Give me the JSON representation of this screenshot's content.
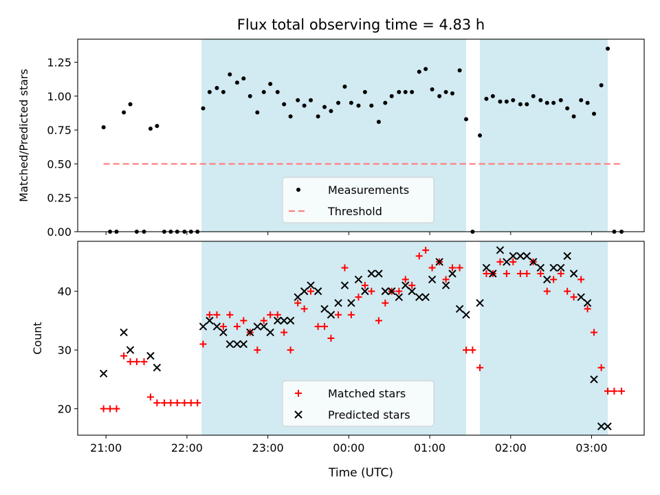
{
  "figure": {
    "title": "Flux total observing time = 4.83 h",
    "xlabel": "Time (UTC)",
    "x_ticks": [
      "21:00",
      "22:00",
      "23:00",
      "00:00",
      "01:00",
      "02:00",
      "03:00"
    ],
    "x_tick_hours": [
      21,
      22,
      23,
      24,
      25,
      26,
      27
    ]
  },
  "chart_data": [
    {
      "type": "scatter",
      "panel": "top",
      "title": "Flux total observing time = 4.83 h",
      "ylabel": "Matched/Predicted stars",
      "xlabel": "Time (UTC)",
      "x_unit": "hours since 00:00 of first day (24 = 00:00 next day)",
      "xlim": [
        20.65,
        27.65
      ],
      "ylim": [
        0,
        1.42
      ],
      "yticks": [
        "0.00",
        "0.25",
        "0.50",
        "0.75",
        "1.00",
        "1.25"
      ],
      "ytick_values": [
        0,
        0.25,
        0.5,
        0.75,
        1.0,
        1.25
      ],
      "shaded_intervals": [
        [
          22.18,
          25.45
        ],
        [
          25.62,
          27.2
        ]
      ],
      "shade_color": "#add8e6",
      "legend": {
        "position": "lower center",
        "entries": [
          "Measurements",
          "Threshold"
        ]
      },
      "series": [
        {
          "name": "Measurements",
          "kind": "points",
          "color": "#000000",
          "x": [
            20.97,
            21.05,
            21.13,
            21.22,
            21.3,
            21.38,
            21.47,
            21.55,
            21.63,
            21.72,
            21.8,
            21.88,
            21.97,
            22.05,
            22.13,
            22.2,
            22.28,
            22.37,
            22.45,
            22.53,
            22.62,
            22.7,
            22.78,
            22.87,
            22.95,
            23.03,
            23.12,
            23.2,
            23.28,
            23.37,
            23.45,
            23.53,
            23.62,
            23.7,
            23.78,
            23.87,
            23.95,
            24.03,
            24.12,
            24.2,
            24.28,
            24.37,
            24.45,
            24.53,
            24.62,
            24.7,
            24.78,
            24.87,
            24.95,
            25.03,
            25.12,
            25.2,
            25.28,
            25.37,
            25.45,
            25.53,
            25.62,
            25.7,
            25.78,
            25.87,
            25.95,
            26.03,
            26.12,
            26.2,
            26.28,
            26.37,
            26.45,
            26.53,
            26.62,
            26.7,
            26.78,
            26.87,
            26.95,
            27.03,
            27.12,
            27.2,
            27.28,
            27.37
          ],
          "y": [
            0.77,
            0.0,
            0.0,
            0.88,
            0.94,
            0.0,
            0.0,
            0.76,
            0.78,
            0.0,
            0.0,
            0.0,
            0.0,
            0.0,
            0.0,
            0.91,
            1.03,
            1.06,
            1.03,
            1.16,
            1.1,
            1.13,
            1.0,
            0.88,
            1.03,
            1.09,
            1.03,
            0.94,
            0.85,
            0.97,
            0.93,
            0.97,
            0.85,
            0.92,
            0.89,
            0.95,
            1.07,
            0.95,
            0.93,
            1.03,
            0.93,
            0.81,
            0.95,
            1.0,
            1.03,
            1.03,
            1.03,
            1.18,
            1.2,
            1.05,
            1.0,
            1.03,
            1.02,
            1.19,
            0.83,
            0.0,
            0.71,
            0.98,
            1.0,
            0.96,
            0.96,
            0.97,
            0.94,
            0.94,
            1.0,
            0.97,
            0.95,
            0.95,
            0.97,
            0.91,
            0.85,
            0.97,
            0.95,
            0.87,
            1.08,
            1.35,
            0.0,
            0.0
          ]
        },
        {
          "name": "Threshold",
          "kind": "dashed-line",
          "color": "#ff8080",
          "x": [
            20.97,
            27.37
          ],
          "y": [
            0.5,
            0.5
          ]
        }
      ]
    },
    {
      "type": "scatter",
      "panel": "bottom",
      "ylabel": "Count",
      "xlabel": "Time (UTC)",
      "x_unit": "hours since 00:00 of first day (24 = 00:00 next day)",
      "xlim": [
        20.65,
        27.65
      ],
      "ylim": [
        15.5,
        48.5
      ],
      "yticks": [
        "20",
        "30",
        "40"
      ],
      "ytick_values": [
        20,
        30,
        40
      ],
      "shaded_intervals": [
        [
          22.18,
          25.45
        ],
        [
          25.62,
          27.2
        ]
      ],
      "shade_color": "#add8e6",
      "legend": {
        "position": "lower center",
        "entries": [
          "Matched stars",
          "Predicted stars"
        ]
      },
      "series": [
        {
          "name": "Matched stars",
          "kind": "plus",
          "color": "#ff0000",
          "x": [
            20.97,
            21.05,
            21.13,
            21.22,
            21.3,
            21.38,
            21.47,
            21.55,
            21.63,
            21.72,
            21.8,
            21.88,
            21.97,
            22.05,
            22.13,
            22.2,
            22.28,
            22.37,
            22.45,
            22.53,
            22.62,
            22.7,
            22.78,
            22.87,
            22.95,
            23.03,
            23.12,
            23.2,
            23.28,
            23.37,
            23.45,
            23.53,
            23.62,
            23.7,
            23.78,
            23.87,
            23.95,
            24.03,
            24.12,
            24.2,
            24.28,
            24.37,
            24.45,
            24.53,
            24.62,
            24.7,
            24.78,
            24.87,
            24.95,
            25.03,
            25.12,
            25.2,
            25.28,
            25.37,
            25.45,
            25.53,
            25.62,
            25.7,
            25.78,
            25.87,
            25.95,
            26.03,
            26.12,
            26.2,
            26.28,
            26.37,
            26.45,
            26.53,
            26.62,
            26.7,
            26.78,
            26.87,
            26.95,
            27.03,
            27.12,
            27.2,
            27.28,
            27.37
          ],
          "y": [
            20,
            20,
            20,
            29,
            28,
            28,
            28,
            22,
            21,
            21,
            21,
            21,
            21,
            21,
            21,
            31,
            36,
            36,
            34,
            36,
            34,
            35,
            33,
            30,
            35,
            36,
            36,
            33,
            30,
            38,
            37,
            40,
            34,
            34,
            32,
            36,
            44,
            36,
            39,
            41,
            40,
            35,
            38,
            40,
            40,
            42,
            41,
            46,
            47,
            44,
            45,
            42,
            44,
            44,
            30,
            30,
            27,
            43,
            43,
            45,
            43,
            45,
            43,
            43,
            45,
            43,
            40,
            42,
            43,
            40,
            39,
            42,
            37,
            33,
            27,
            23,
            23,
            23
          ]
        },
        {
          "name": "Predicted stars",
          "kind": "x",
          "color": "#000000",
          "x": [
            20.97,
            21.22,
            21.3,
            21.55,
            21.63,
            22.2,
            22.28,
            22.37,
            22.45,
            22.53,
            22.62,
            22.7,
            22.78,
            22.87,
            22.95,
            23.03,
            23.12,
            23.2,
            23.28,
            23.37,
            23.45,
            23.53,
            23.62,
            23.7,
            23.78,
            23.87,
            23.95,
            24.03,
            24.12,
            24.2,
            24.28,
            24.37,
            24.45,
            24.53,
            24.62,
            24.7,
            24.78,
            24.87,
            24.95,
            25.03,
            25.12,
            25.2,
            25.28,
            25.37,
            25.45,
            25.62,
            25.7,
            25.78,
            25.87,
            25.95,
            26.03,
            26.12,
            26.2,
            26.28,
            26.37,
            26.45,
            26.53,
            26.62,
            26.7,
            26.78,
            26.87,
            26.95,
            27.03,
            27.12,
            27.2
          ],
          "y": [
            26,
            33,
            30,
            29,
            27,
            34,
            35,
            34,
            33,
            31,
            31,
            31,
            33,
            34,
            34,
            33,
            35,
            35,
            35,
            39,
            40,
            41,
            40,
            37,
            36,
            38,
            41,
            38,
            42,
            40,
            43,
            43,
            40,
            40,
            39,
            41,
            40,
            39,
            39,
            42,
            45,
            41,
            43,
            37,
            36,
            38,
            44,
            43,
            47,
            45,
            46,
            46,
            46,
            45,
            44,
            42,
            44,
            44,
            46,
            43,
            39,
            38,
            25,
            17,
            17
          ]
        }
      ]
    }
  ]
}
